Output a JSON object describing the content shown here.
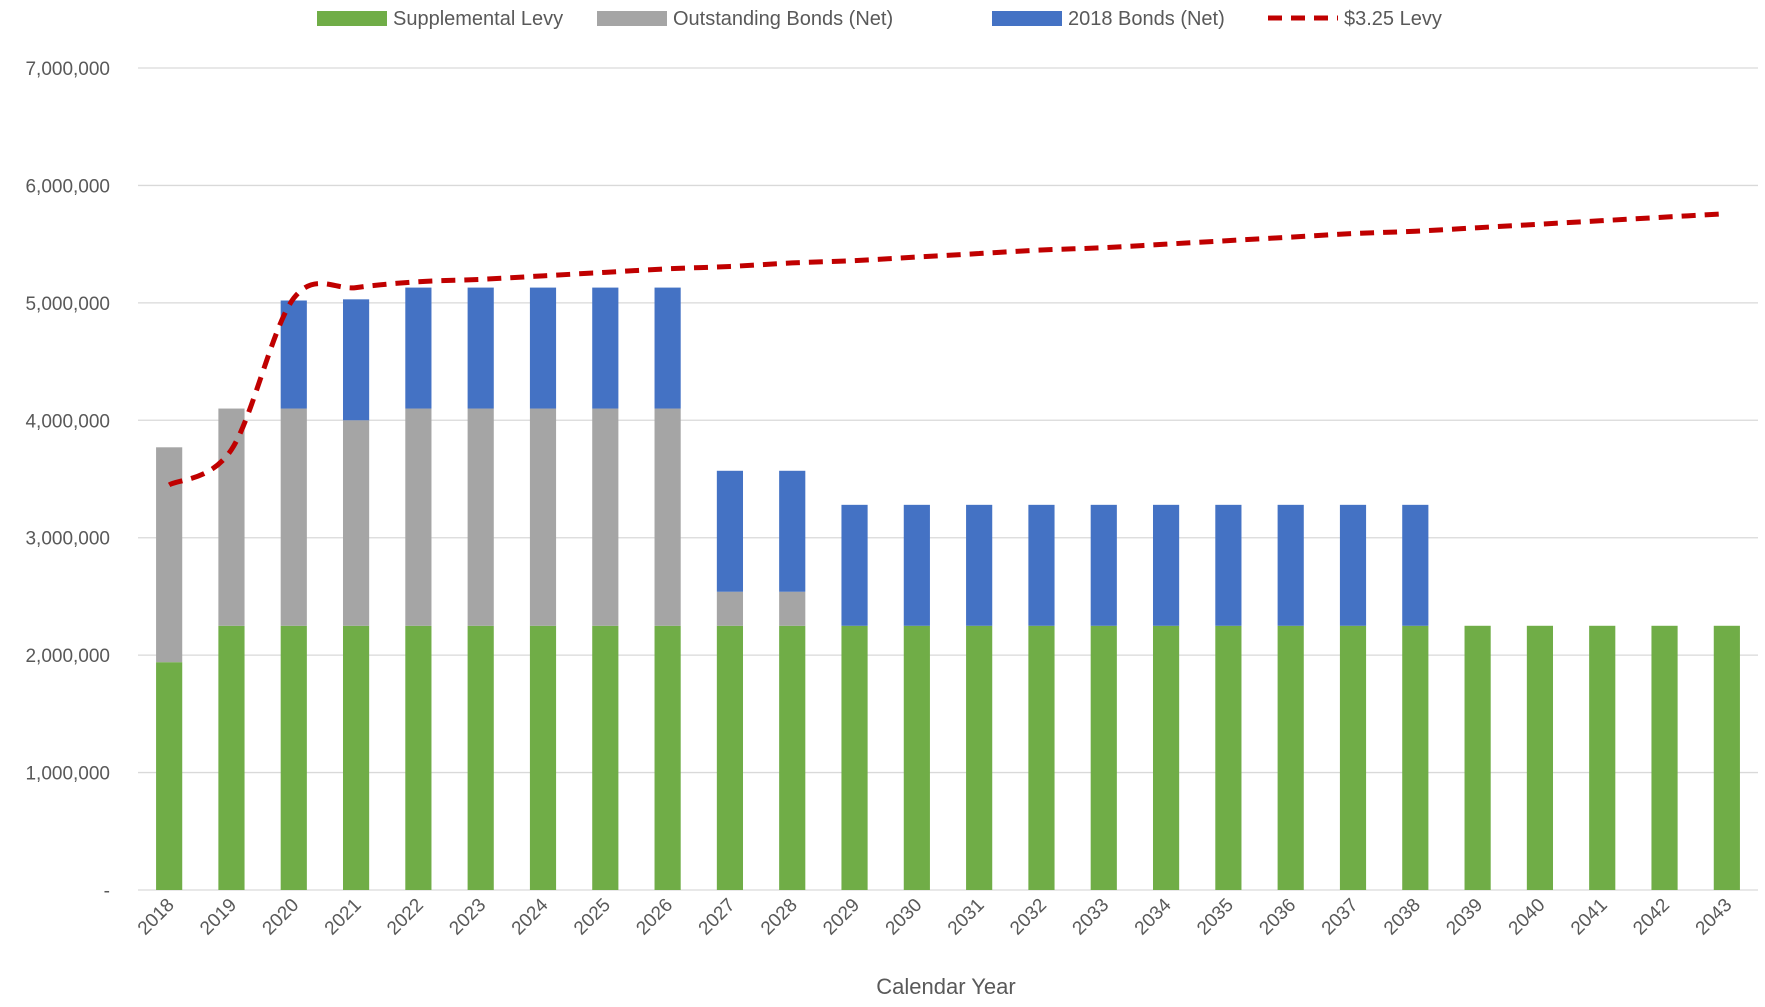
{
  "chart_data": {
    "type": "bar",
    "stacked": true,
    "title": "",
    "xlabel": "Calendar Year",
    "ylabel": "",
    "ylim": [
      0,
      7000000
    ],
    "yticks": [
      0,
      1000000,
      2000000,
      3000000,
      4000000,
      5000000,
      6000000,
      7000000
    ],
    "ytick_labels": [
      "-",
      "1,000,000",
      "2,000,000",
      "3,000,000",
      "4,000,000",
      "5,000,000",
      "6,000,000",
      "7,000,000"
    ],
    "grid": true,
    "legend_position": "top",
    "categories": [
      "2018",
      "2019",
      "2020",
      "2021",
      "2022",
      "2023",
      "2024",
      "2025",
      "2026",
      "2027",
      "2028",
      "2029",
      "2030",
      "2031",
      "2032",
      "2033",
      "2034",
      "2035",
      "2036",
      "2037",
      "2038",
      "2039",
      "2040",
      "2041",
      "2042",
      "2043"
    ],
    "series": [
      {
        "name": "Supplemental Levy",
        "kind": "bar",
        "color": "#70ad47",
        "values": [
          1940000,
          2250000,
          2250000,
          2250000,
          2250000,
          2250000,
          2250000,
          2250000,
          2250000,
          2250000,
          2250000,
          2250000,
          2250000,
          2250000,
          2250000,
          2250000,
          2250000,
          2250000,
          2250000,
          2250000,
          2250000,
          2250000,
          2250000,
          2250000,
          2250000,
          2250000
        ]
      },
      {
        "name": "Outstanding Bonds (Net)",
        "kind": "bar",
        "color": "#a5a5a5",
        "values": [
          1830000,
          1850000,
          1850000,
          1750000,
          1850000,
          1850000,
          1850000,
          1850000,
          1850000,
          290000,
          290000,
          0,
          0,
          0,
          0,
          0,
          0,
          0,
          0,
          0,
          0,
          0,
          0,
          0,
          0,
          0
        ]
      },
      {
        "name": "2018 Bonds (Net)",
        "kind": "bar",
        "color": "#4472c4",
        "values": [
          0,
          0,
          920000,
          1030000,
          1030000,
          1030000,
          1030000,
          1030000,
          1030000,
          1030000,
          1030000,
          1030000,
          1030000,
          1030000,
          1030000,
          1030000,
          1030000,
          1030000,
          1030000,
          1030000,
          1030000,
          0,
          0,
          0,
          0,
          0
        ]
      },
      {
        "name": "$3.25 Levy",
        "kind": "line",
        "style": "dashed",
        "color": "#c00000",
        "values": [
          3450000,
          3750000,
          5040000,
          5130000,
          5180000,
          5200000,
          5230000,
          5260000,
          5290000,
          5310000,
          5340000,
          5360000,
          5390000,
          5420000,
          5450000,
          5470000,
          5500000,
          5530000,
          5560000,
          5590000,
          5610000,
          5640000,
          5670000,
          5700000,
          5730000,
          5760000
        ]
      }
    ]
  }
}
